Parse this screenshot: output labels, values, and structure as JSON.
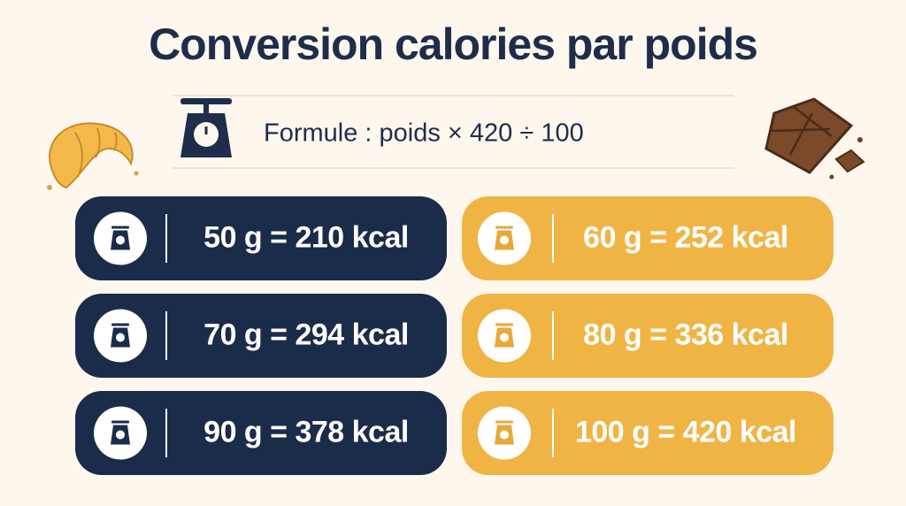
{
  "title": "Conversion calories par poids",
  "formula": "Formule : poids × 420 ÷ 100",
  "cards": [
    {
      "label": "50 g = 210 kcal"
    },
    {
      "label": "60 g = 252 kcal"
    },
    {
      "label": "70 g = 294 kcal"
    },
    {
      "label": "80 g = 336 kcal"
    },
    {
      "label": "90 g = 378 kcal"
    },
    {
      "label": "100 g = 420 kcal"
    }
  ]
}
